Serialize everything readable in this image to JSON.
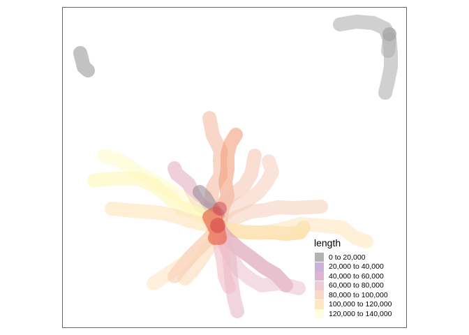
{
  "legend": {
    "title": "length",
    "classes": [
      {
        "label": "0 to 20,000",
        "color": "#b3b3b3"
      },
      {
        "label": "20,000 to 40,000",
        "color": "#c9b3d9"
      },
      {
        "label": "40,000 to 60,000",
        "color": "#e0b3d0"
      },
      {
        "label": "60,000 to 80,000",
        "color": "#f0c9d6"
      },
      {
        "label": "80,000 to 100,000",
        "color": "#f9d9c6"
      },
      {
        "label": "100,000 to 120,000",
        "color": "#fde8c2"
      },
      {
        "label": "120,000 to 140,000",
        "color": "#fefde0"
      }
    ]
  },
  "map": {
    "routes": [
      {
        "color": "#b0b0b0",
        "opacity": 0.6
      },
      {
        "color": "#b0b0b0",
        "opacity": 0.6
      },
      {
        "color": "#f2b79a",
        "opacity": 0.55
      },
      {
        "color": "#f29f7c",
        "opacity": 0.6
      },
      {
        "color": "#f4c3b0",
        "opacity": 0.55
      },
      {
        "color": "#f6c9b6",
        "opacity": 0.5
      },
      {
        "color": "#e0a8bc",
        "opacity": 0.55
      },
      {
        "color": "#9a8e9a",
        "opacity": 0.6
      },
      {
        "color": "#fefbc9",
        "opacity": 0.6
      },
      {
        "color": "#fdf6b8",
        "opacity": 0.6
      },
      {
        "color": "#fbe2b8",
        "opacity": 0.6
      },
      {
        "color": "#f6c9b6",
        "opacity": 0.5
      },
      {
        "color": "#fcd58a",
        "opacity": 0.65
      },
      {
        "color": "#fde6c0",
        "opacity": 0.6
      },
      {
        "color": "#d998ad",
        "opacity": 0.6
      },
      {
        "color": "#eac0cc",
        "opacity": 0.55
      },
      {
        "color": "#e8b9c8",
        "opacity": 0.6
      },
      {
        "color": "#fbd9b2",
        "opacity": 0.55
      },
      {
        "color": "#fde6c6",
        "opacity": 0.6
      },
      {
        "color": "#f8cdb2",
        "opacity": 0.6
      },
      {
        "color": "#f0bcc8",
        "opacity": 0.6
      },
      {
        "color": "#e86a4e",
        "opacity": 0.7
      }
    ]
  }
}
